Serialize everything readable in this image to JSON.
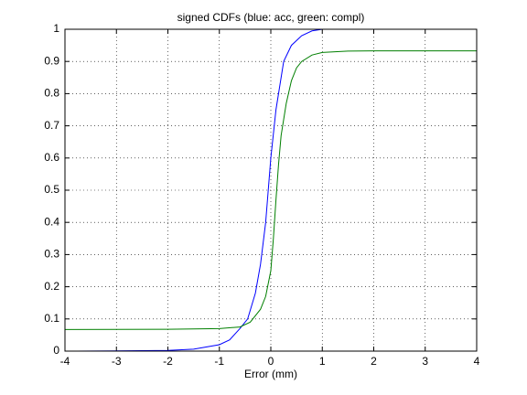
{
  "chart_data": {
    "type": "line",
    "title": "signed CDFs (blue: acc, green: compl)",
    "xlabel": "Error (mm)",
    "xlim": [
      -4,
      4
    ],
    "ylim": [
      0,
      1
    ],
    "xticks": [
      -4,
      -3,
      -2,
      -1,
      0,
      1,
      2,
      3,
      4
    ],
    "yticks": [
      0,
      0.1,
      0.2,
      0.3,
      0.4,
      0.5,
      0.6,
      0.7,
      0.8,
      0.9,
      1
    ],
    "grid": true,
    "series": [
      {
        "color": "#0000ff",
        "x": [
          -3.77,
          -2,
          -1.5,
          -1,
          -0.8,
          -0.6,
          -0.45,
          -0.3,
          -0.2,
          -0.1,
          -0.05,
          0,
          0.1,
          0.25,
          0.4,
          0.6,
          0.8,
          1,
          2
        ],
        "values": [
          0,
          0.002,
          0.006,
          0.02,
          0.035,
          0.07,
          0.1,
          0.18,
          0.27,
          0.4,
          0.5,
          0.6,
          0.75,
          0.9,
          0.95,
          0.98,
          0.995,
          1,
          1
        ]
      },
      {
        "color": "#007f00",
        "x": [
          -4,
          -2,
          -1,
          -0.6,
          -0.4,
          -0.2,
          -0.1,
          0,
          0.05,
          0.1,
          0.15,
          0.2,
          0.3,
          0.4,
          0.5,
          0.6,
          0.8,
          1,
          1.5,
          2,
          4
        ],
        "values": [
          0.067,
          0.068,
          0.07,
          0.075,
          0.09,
          0.13,
          0.17,
          0.25,
          0.35,
          0.47,
          0.58,
          0.67,
          0.77,
          0.84,
          0.88,
          0.9,
          0.92,
          0.928,
          0.932,
          0.933,
          0.933
        ]
      }
    ]
  }
}
